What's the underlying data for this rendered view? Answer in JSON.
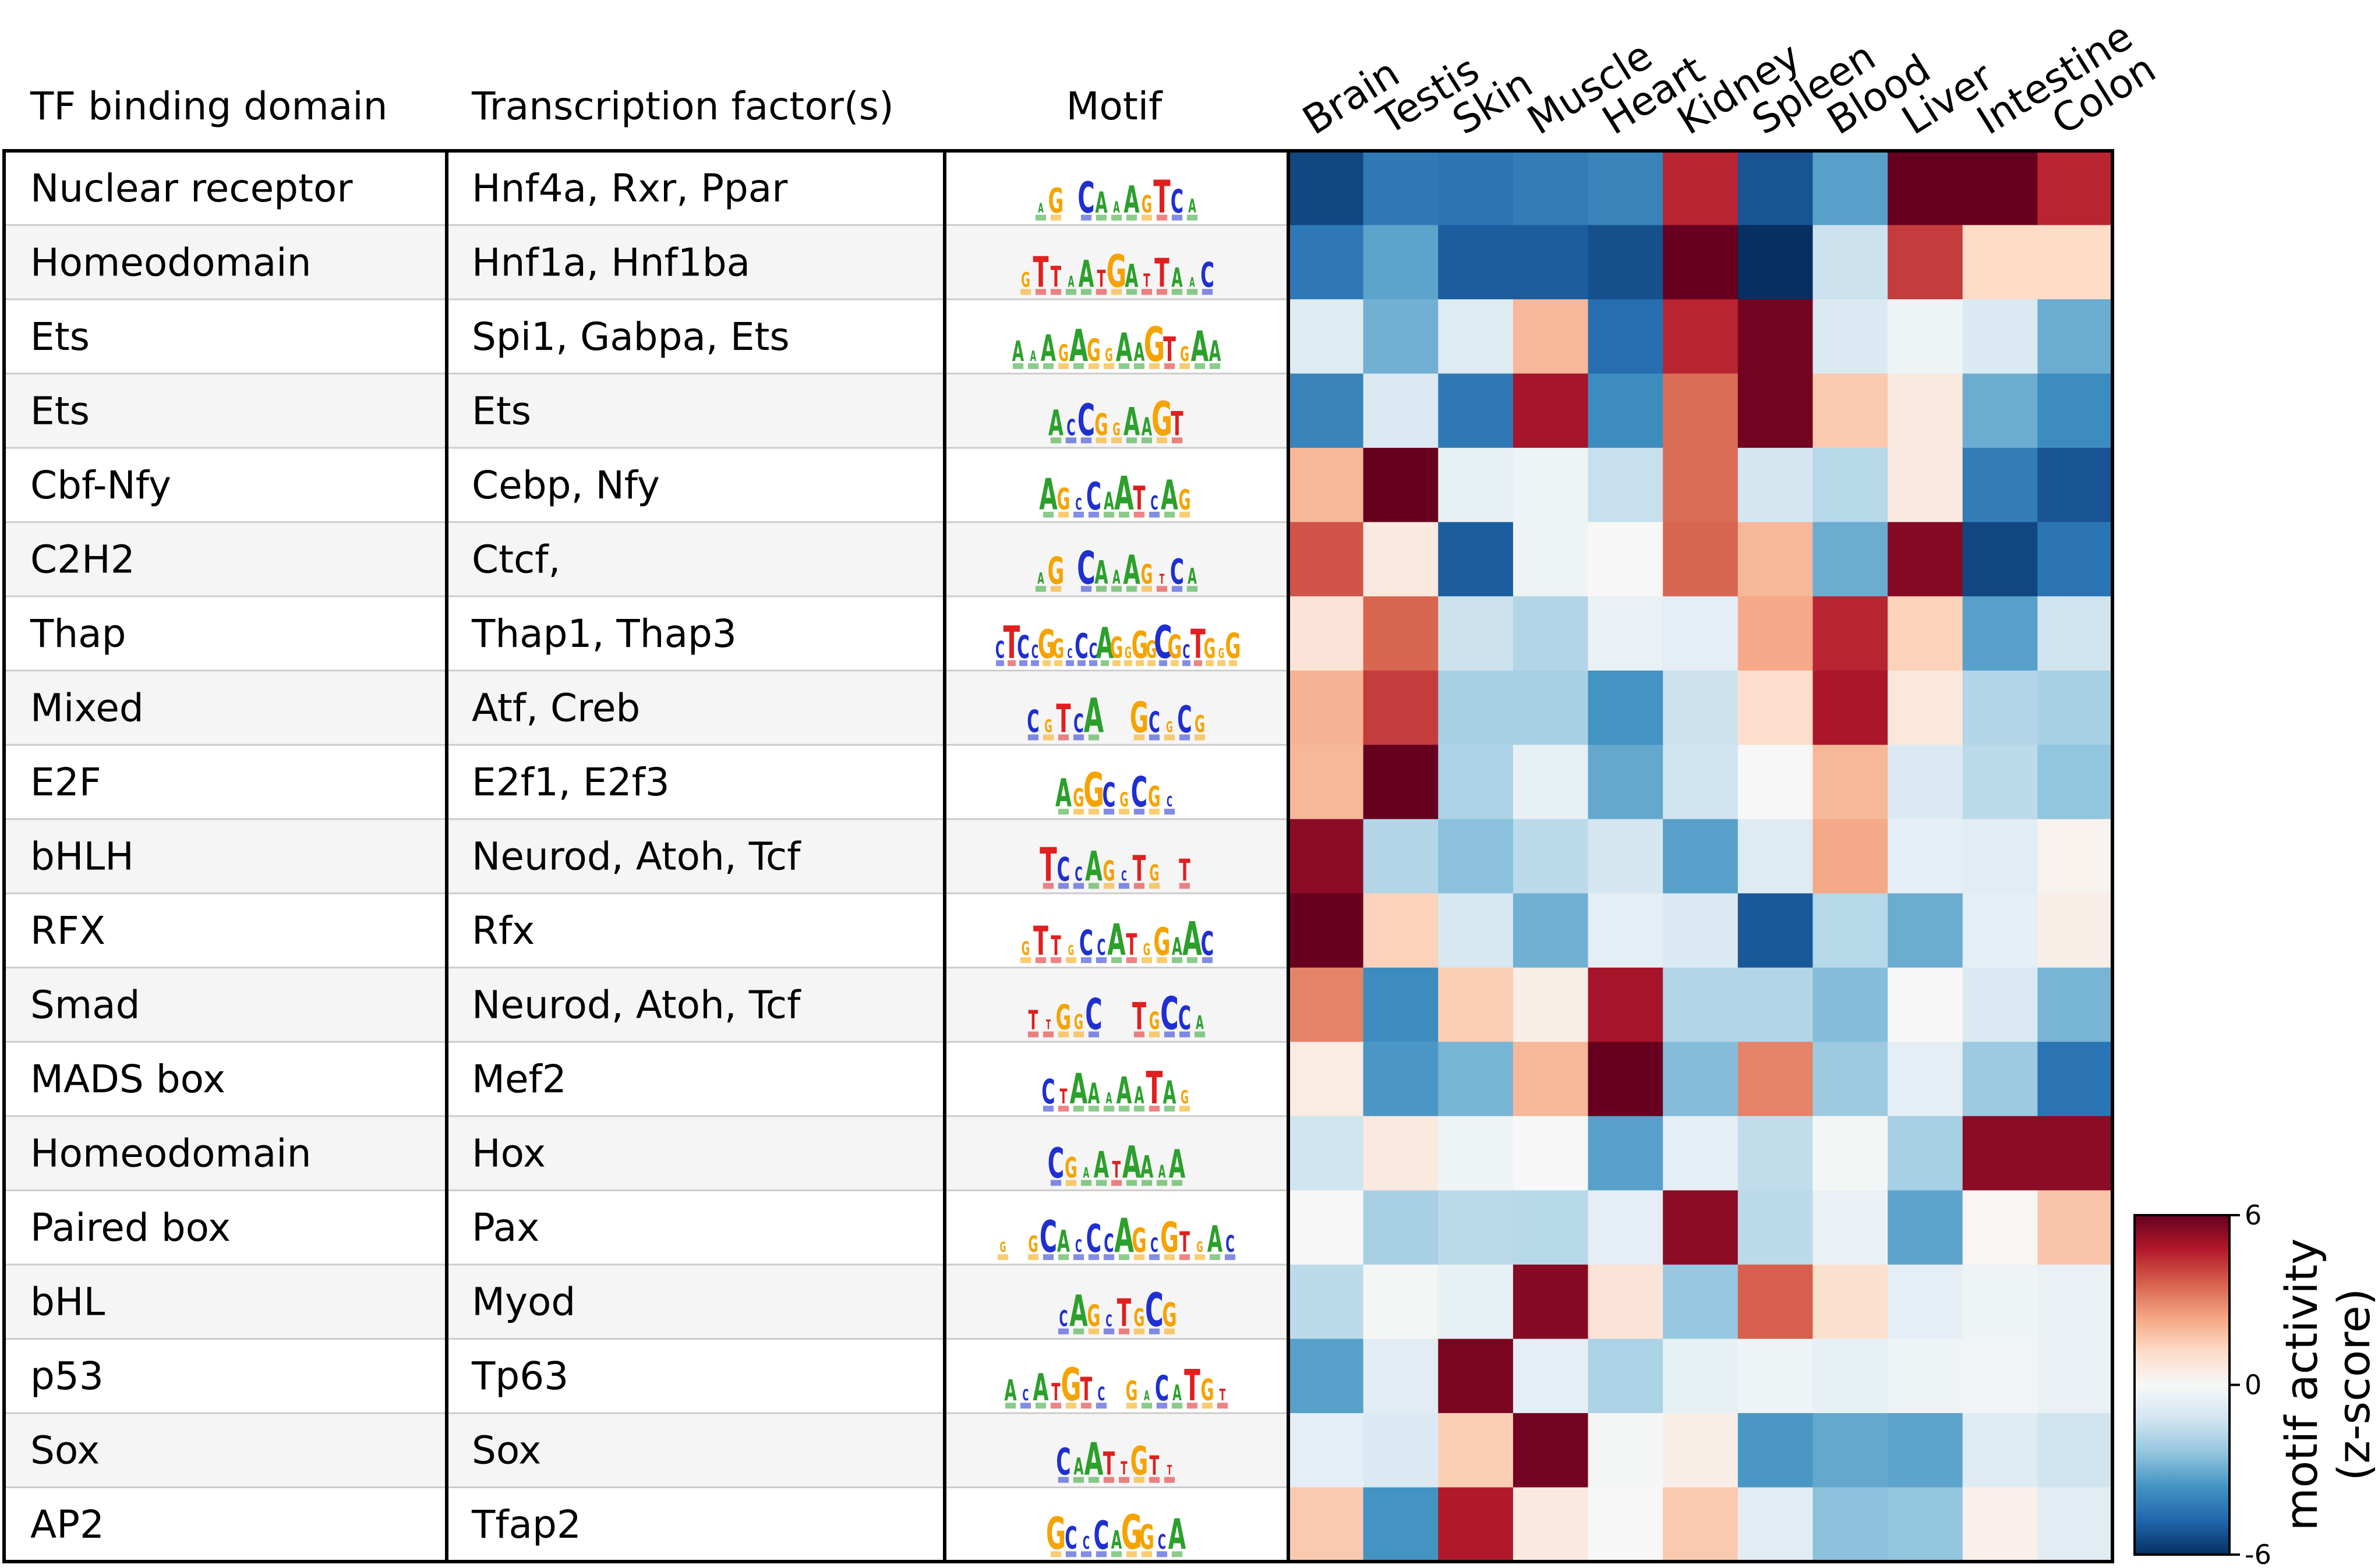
{
  "chart_data": {
    "type": "heatmap",
    "columns_header": [
      "TF binding domain",
      "Transcription factor(s)",
      "Motif"
    ],
    "tissues": [
      "Brain",
      "Testis",
      "Skin",
      "Muscle",
      "Heart",
      "Kidney",
      "Spleen",
      "Blood",
      "Liver",
      "Intestine",
      "Colon"
    ],
    "rows": [
      {
        "domain": "Nuclear receptor",
        "factors": "Hnf4a, Rxr, Ppar",
        "motif": "AGxCAAAGTCA"
      },
      {
        "domain": "Homeodomain",
        "factors": "Hnf1a, Hnf1ba",
        "motif": "GTTAATGATTAAC"
      },
      {
        "domain": "Ets",
        "factors": "Spi1, Gabpa, Ets",
        "motif": "AAAGAGGAAGTGAA"
      },
      {
        "domain": "Ets",
        "factors": "Ets",
        "motif": "ACCGGAAGT"
      },
      {
        "domain": "Cbf-Nfy",
        "factors": "Cebp, Nfy",
        "motif": "AGCCAATCAG"
      },
      {
        "domain": "C2H2",
        "factors": "Ctcf,",
        "motif": "AGxCAAAGTCA"
      },
      {
        "domain": "Thap",
        "factors": "Thap1, Thap3",
        "motif": "CTCCGGCCCAGGGGCGCTGGG"
      },
      {
        "domain": "Mixed",
        "factors": "Atf, Creb",
        "motif": "CGTCAxxGCGCG"
      },
      {
        "domain": "E2F",
        "factors": "E2f1, E2f3",
        "motif": "AGGCGCGC"
      },
      {
        "domain": "bHLH",
        "factors": "Neurod, Atoh, Tcf",
        "motif": "TCCAGCTGxT"
      },
      {
        "domain": "RFX",
        "factors": "Rfx",
        "motif": "GTTGCCATGGAAC"
      },
      {
        "domain": "Smad",
        "factors": "Neurod, Atoh, Tcf",
        "motif": "TTGGCxxTGCCA"
      },
      {
        "domain": "MADS box",
        "factors": "Mef2",
        "motif": "CTAAAAATAG"
      },
      {
        "domain": "Homeodomain",
        "factors": "Hox",
        "motif": "CGAATAAAA"
      },
      {
        "domain": "Paired box",
        "factors": "Pax",
        "motif": "GxGCACCCAGCGTGAC"
      },
      {
        "domain": "bHL",
        "factors": "Myod",
        "motif": "CAGCTGCG"
      },
      {
        "domain": "p53",
        "factors": "Tp63",
        "motif": "ACATGTCxGACATGT"
      },
      {
        "domain": "Sox",
        "factors": "Sox",
        "motif": "CAATTGTT"
      },
      {
        "domain": "AP2",
        "factors": "Tfap2",
        "motif": "GCCCAGGCA"
      }
    ],
    "values": [
      [
        -5.5,
        -4.3,
        -4.4,
        -4.2,
        -4.0,
        4.6,
        -5.2,
        -3.3,
        6.0,
        6.0,
        4.6
      ],
      [
        -4.3,
        -3.2,
        -5.0,
        -5.0,
        -5.3,
        6.0,
        -6.0,
        -1.3,
        4.2,
        1.2,
        1.2
      ],
      [
        -0.8,
        -2.9,
        -0.8,
        2.0,
        -4.6,
        4.6,
        5.8,
        -0.9,
        -0.3,
        -0.9,
        -3.0
      ],
      [
        -4.0,
        -0.9,
        -4.3,
        5.0,
        -3.8,
        3.4,
        5.8,
        1.6,
        0.6,
        -3.0,
        -3.8
      ],
      [
        2.0,
        6.0,
        -0.5,
        -0.3,
        -1.4,
        3.4,
        -1.1,
        -1.7,
        0.6,
        -4.2,
        -5.2
      ],
      [
        3.8,
        0.6,
        -5.0,
        -0.3,
        0.0,
        3.5,
        2.0,
        -3.0,
        5.5,
        -5.5,
        -4.4
      ],
      [
        0.8,
        3.5,
        -1.3,
        -1.8,
        -0.4,
        -0.6,
        2.3,
        4.6,
        1.4,
        -3.3,
        -1.2
      ],
      [
        2.1,
        4.2,
        -2.0,
        -2.0,
        -3.6,
        -1.3,
        1.1,
        4.9,
        0.7,
        -1.8,
        -2.0
      ],
      [
        2.0,
        6.0,
        -1.9,
        -0.5,
        -3.1,
        -1.2,
        0.0,
        2.0,
        -0.9,
        -1.6,
        -2.4
      ],
      [
        5.4,
        -1.8,
        -2.5,
        -1.6,
        -1.1,
        -3.3,
        -0.8,
        2.3,
        -0.6,
        -0.7,
        0.2
      ],
      [
        6.0,
        1.4,
        -1.0,
        -2.9,
        -0.6,
        -0.9,
        -5.1,
        -1.7,
        -3.0,
        -0.6,
        0.4
      ],
      [
        3.0,
        -3.8,
        1.5,
        0.4,
        5.0,
        -1.8,
        -1.8,
        -2.6,
        0.0,
        -0.9,
        -2.8
      ],
      [
        0.5,
        -3.5,
        -2.8,
        2.0,
        6.0,
        -2.6,
        3.0,
        -2.2,
        -0.6,
        -2.2,
        -4.4
      ],
      [
        -1.2,
        0.6,
        -0.3,
        0.0,
        -3.3,
        -0.6,
        -1.5,
        -0.1,
        -2.0,
        5.4,
        5.4
      ],
      [
        0.0,
        -2.0,
        -1.6,
        -1.7,
        -0.6,
        5.4,
        -1.6,
        -0.4,
        -3.2,
        0.1,
        1.7
      ],
      [
        -1.6,
        -0.1,
        -0.5,
        5.5,
        0.8,
        -2.3,
        3.6,
        1.0,
        -0.6,
        -0.3,
        -0.4
      ],
      [
        -3.3,
        -0.7,
        5.7,
        -0.6,
        -1.9,
        -0.5,
        -0.3,
        -0.5,
        -0.3,
        -0.2,
        -0.4
      ],
      [
        -0.6,
        -0.9,
        1.5,
        5.8,
        -0.1,
        0.4,
        -3.5,
        -3.1,
        -3.2,
        -0.8,
        -1.2
      ],
      [
        1.6,
        -3.6,
        4.8,
        0.6,
        0.0,
        1.6,
        -0.7,
        -2.5,
        -2.4,
        0.3,
        -0.7
      ]
    ],
    "colorbar": {
      "label": "motif activity\n(z-score)",
      "ticks": [
        6,
        0,
        -6
      ],
      "tick_labels": [
        "6",
        "0",
        "-6"
      ],
      "vmin": -6,
      "vmax": 6,
      "cmap": "RdBu_r"
    }
  },
  "colors": {
    "row_stripe": "#f5f5f5",
    "grid_line": "#000000",
    "row_divider": "#cccccc"
  }
}
